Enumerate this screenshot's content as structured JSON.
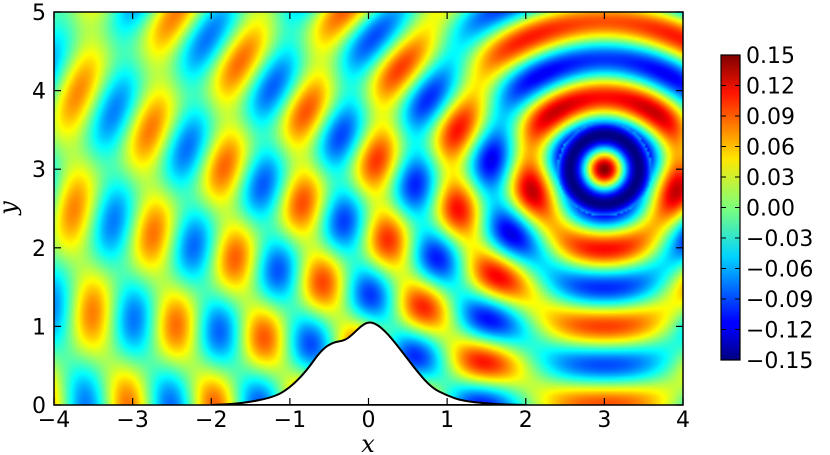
{
  "chart_data": {
    "type": "heatmap",
    "title": "",
    "xlabel": "x",
    "ylabel": "y",
    "xlim": [
      -4,
      4
    ],
    "ylim": [
      0,
      5
    ],
    "x_ticks": [
      -4,
      -3,
      -2,
      -1,
      0,
      1,
      2,
      3,
      4
    ],
    "x_tick_labels": [
      "−4",
      "−3",
      "−2",
      "−1",
      "0",
      "1",
      "2",
      "3",
      "4"
    ],
    "y_ticks": [
      0,
      1,
      2,
      3,
      4,
      5
    ],
    "y_tick_labels": [
      "0",
      "1",
      "2",
      "3",
      "4",
      "5"
    ],
    "colormap": "jet",
    "clim": [
      -0.15,
      0.15
    ],
    "colorbar_ticks": [
      0.15,
      0.12,
      0.09,
      0.06,
      0.03,
      0.0,
      -0.03,
      -0.06,
      -0.09,
      -0.12,
      -0.15
    ],
    "colorbar_tick_labels": [
      "0.15",
      "0.12",
      "0.09",
      "0.06",
      "0.03",
      "0.00",
      "−0.03",
      "−0.06",
      "−0.09",
      "−0.12",
      "−0.15"
    ],
    "field": {
      "source_center": [
        3.0,
        3.0
      ],
      "wave_number": 6.5,
      "description_values": {
        "center_peak": 0.15,
        "inner_ring": -0.15
      }
    },
    "obstacle_profile": {
      "x": [
        -2.0,
        -1.6,
        -1.2,
        -1.0,
        -0.8,
        -0.6,
        -0.45,
        -0.3,
        -0.2,
        -0.1,
        0.0,
        0.1,
        0.2,
        0.3,
        0.45,
        0.6,
        0.8,
        1.0,
        1.2,
        1.6,
        2.0
      ],
      "y": [
        0.0,
        0.02,
        0.1,
        0.22,
        0.42,
        0.7,
        0.8,
        0.82,
        0.9,
        1.0,
        1.06,
        1.03,
        0.95,
        0.84,
        0.65,
        0.45,
        0.22,
        0.12,
        0.05,
        0.01,
        0.0
      ]
    }
  }
}
